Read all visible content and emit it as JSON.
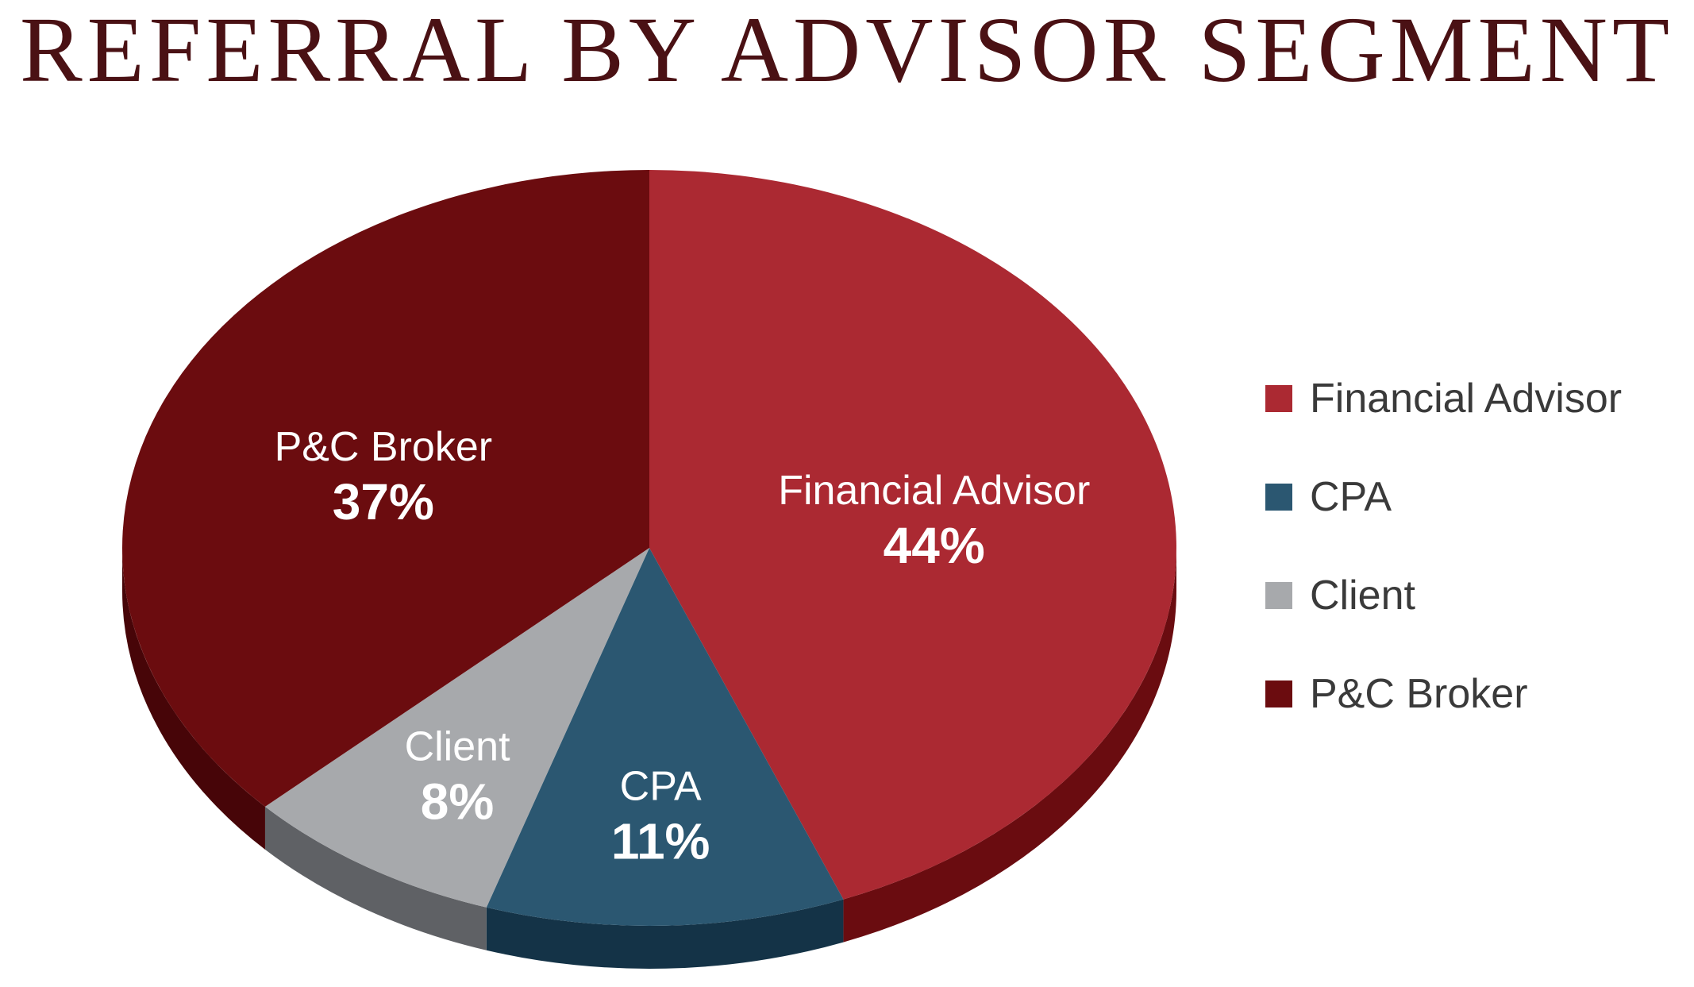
{
  "chart_data": {
    "type": "pie",
    "title": "REFERRAL BY ADVISOR SEGMENT",
    "categories": [
      "Financial Advisor",
      "CPA",
      "Client",
      "P&C Broker"
    ],
    "values": [
      44,
      11,
      8,
      37
    ],
    "value_labels": [
      "44%",
      "11%",
      "8%",
      "37%"
    ],
    "colors": [
      "#ab2932",
      "#2b5771",
      "#a7a9ac",
      "#6b0c0f"
    ],
    "side_colors": [
      "#6a0c10",
      "#143347",
      "#5f6165",
      "#470508"
    ],
    "legend": {
      "position": "right",
      "entries": [
        "Financial Advisor",
        "CPA",
        "Client",
        "P&C Broker"
      ]
    }
  }
}
